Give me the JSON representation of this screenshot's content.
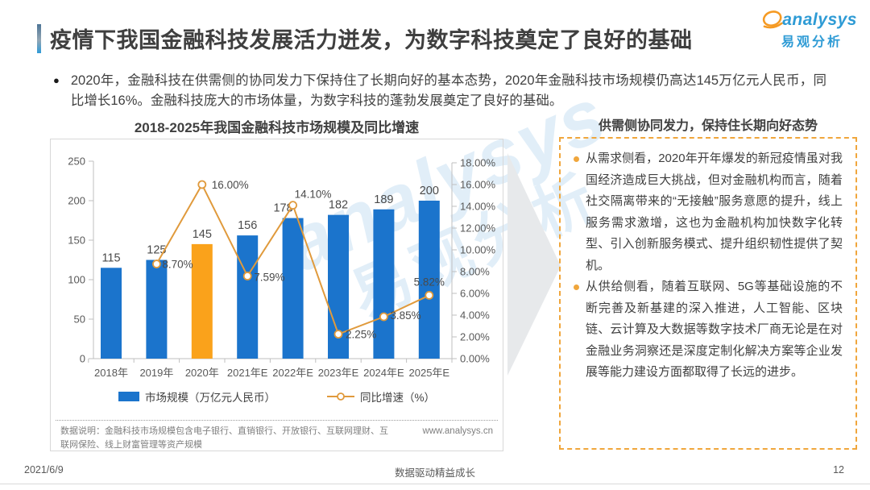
{
  "page": {
    "title": "疫情下我国金融科技发展活力迸发，为数字科技奠定了良好的基础",
    "intro": "2020年，金融科技在供需侧的协同发力下保持住了长期向好的基本态势，2020年金融科技市场规模仍高达145万亿元人民币，同比增长16%。金融科技庞大的市场体量，为数字科技的蓬勃发展奠定了良好的基础。",
    "logo": {
      "brand": "analysys",
      "brand_cn": "易观分析"
    },
    "watermark_line1": "analysys",
    "watermark_line2": "易观分析",
    "footer": {
      "date": "2021/6/9",
      "slogan": "数据驱动精益成长",
      "page_number": "12"
    }
  },
  "chart_data": {
    "type": "bar",
    "title": "2018-2025年我国金融科技市场规模及同比增速",
    "categories": [
      "2018年",
      "2019年",
      "2020年",
      "2021年E",
      "2022年E",
      "2023年E",
      "2024年E",
      "2025年E"
    ],
    "series": [
      {
        "name": "市场规模（万亿元人民币）",
        "type": "bar",
        "axis": "left",
        "values": [
          115,
          125,
          145,
          156,
          178,
          182,
          189,
          200
        ],
        "color": "#1b74cc",
        "highlight_index": 2,
        "highlight_color": "#faa21b"
      },
      {
        "name": "同比增速（%）",
        "type": "line",
        "axis": "right",
        "values": [
          null,
          8.7,
          16.0,
          7.59,
          14.1,
          2.25,
          3.85,
          5.82
        ],
        "point_labels": [
          null,
          "8.70%",
          "16.00%",
          "7.59%",
          "14.10%",
          "2.25%",
          "3.85%",
          "5.82%"
        ],
        "color": "#e09a3c"
      }
    ],
    "left_axis": {
      "min": 0,
      "max": 250,
      "step": 50,
      "ticks": [
        "0",
        "50",
        "100",
        "150",
        "200",
        "250"
      ]
    },
    "right_axis": {
      "min": 0,
      "max": 18,
      "step": 2,
      "ticks": [
        "0.00%",
        "2.00%",
        "4.00%",
        "6.00%",
        "8.00%",
        "10.00%",
        "12.00%",
        "14.00%",
        "16.00%",
        "18.00%"
      ]
    },
    "legend": [
      {
        "type": "bar",
        "label": "市场规模（万亿元人民币）",
        "color": "#1b74cc"
      },
      {
        "type": "line",
        "label": "同比增速（%）",
        "color": "#e09a3c"
      }
    ],
    "grid": false,
    "legend_position": "bottom",
    "footnote": "数据说明：金融科技市场规模包含电子银行、直销银行、开放银行、互联网理财、互联网保险、线上财富管理等资产规模",
    "source": "www.analysys.cn"
  },
  "panel": {
    "heading": "供需侧协同发力，保持住长期向好态势",
    "bullets": [
      "从需求侧看，2020年开年爆发的新冠疫情虽对我国经济造成巨大挑战，但对金融机构而言，随着社交隔离带来的“无接触”服务意愿的提升，线上服务需求激增，这也为金融机构加快数字化转型、引入创新服务模式、提升组织韧性提供了契机。",
      "从供给侧看，随着互联网、5G等基础设施的不断完善及新基建的深入推进，人工智能、区块链、云计算及大数据等数字技术厂商无论是在对金融业务洞察还是深度定制化解决方案等企业发展等能力建设方面都取得了长远的进步。"
    ]
  },
  "colors": {
    "bar_blue": "#1b74cc",
    "bar_highlight_orange": "#faa21b",
    "line_orange": "#e09a3c",
    "panel_border_orange": "#f0a63c",
    "brand_blue": "#2e9bd5",
    "brand_orange": "#f59a23",
    "title_gray": "#3f3f3f"
  }
}
